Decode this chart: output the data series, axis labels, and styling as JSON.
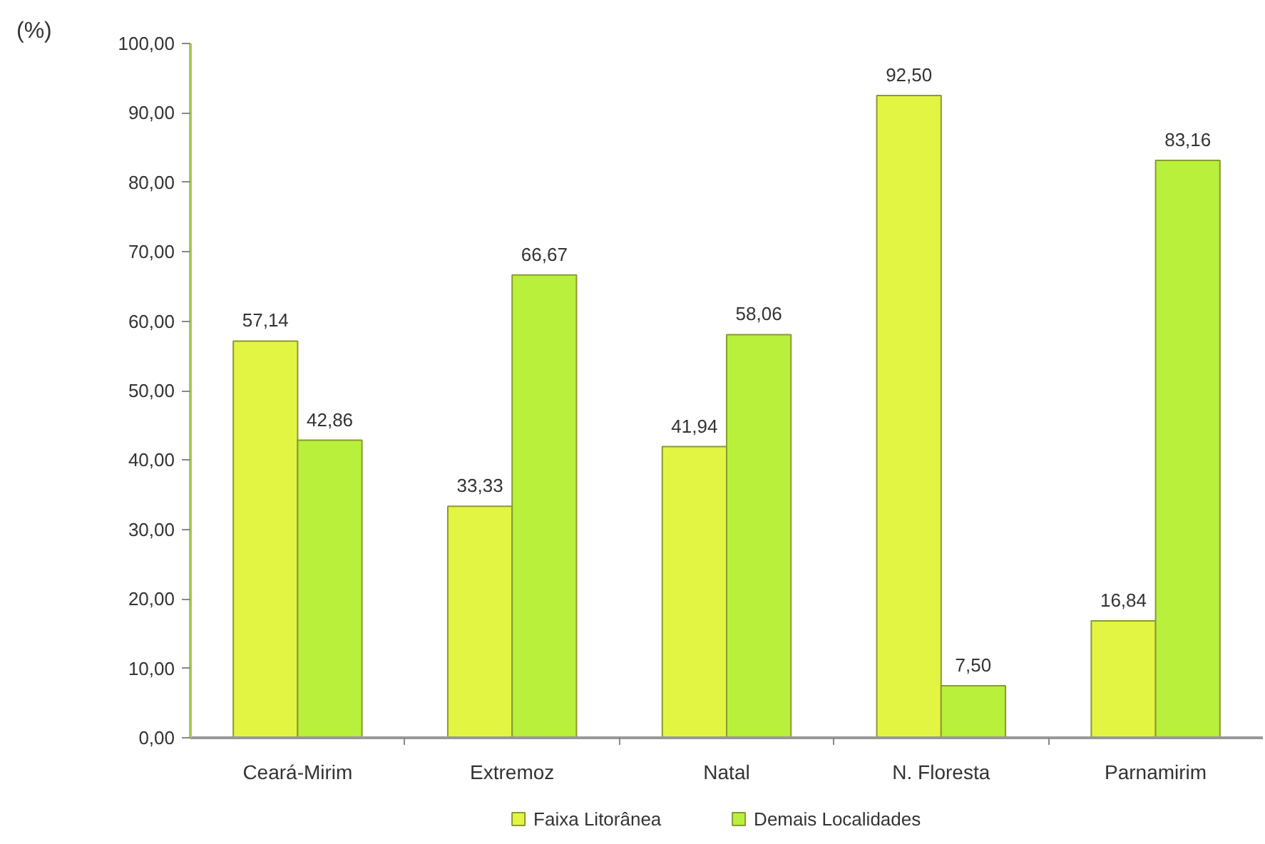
{
  "chart_data": {
    "type": "bar",
    "ylabel": "(%)",
    "categories": [
      "Ceará-Mirim",
      "Extremoz",
      "Natal",
      "N. Floresta",
      "Parnamirim"
    ],
    "series": [
      {
        "name": "Faixa Litorânea",
        "color": "#e2f542",
        "values": [
          57.14,
          33.33,
          41.94,
          92.5,
          16.84
        ],
        "value_labels": [
          "57,14",
          "33,33",
          "41,94",
          "92,50",
          "16,84"
        ]
      },
      {
        "name": "Demais Localidades",
        "color": "#b8f03c",
        "values": [
          42.86,
          66.67,
          58.06,
          7.5,
          83.16
        ],
        "value_labels": [
          "42,86",
          "66,67",
          "58,06",
          "7,50",
          "83,16"
        ]
      }
    ],
    "ylim": [
      0,
      100
    ],
    "yticks": [
      {
        "value": 0,
        "label": "0,00"
      },
      {
        "value": 10,
        "label": "10,00"
      },
      {
        "value": 20,
        "label": "20,00"
      },
      {
        "value": 30,
        "label": "30,00"
      },
      {
        "value": 40,
        "label": "40,00"
      },
      {
        "value": 50,
        "label": "50,00"
      },
      {
        "value": 60,
        "label": "60,00"
      },
      {
        "value": 70,
        "label": "70,00"
      },
      {
        "value": 80,
        "label": "80,00"
      },
      {
        "value": 90,
        "label": "90,00"
      },
      {
        "value": 100,
        "label": "100,00"
      }
    ],
    "grid": false,
    "legend": "bottom"
  }
}
